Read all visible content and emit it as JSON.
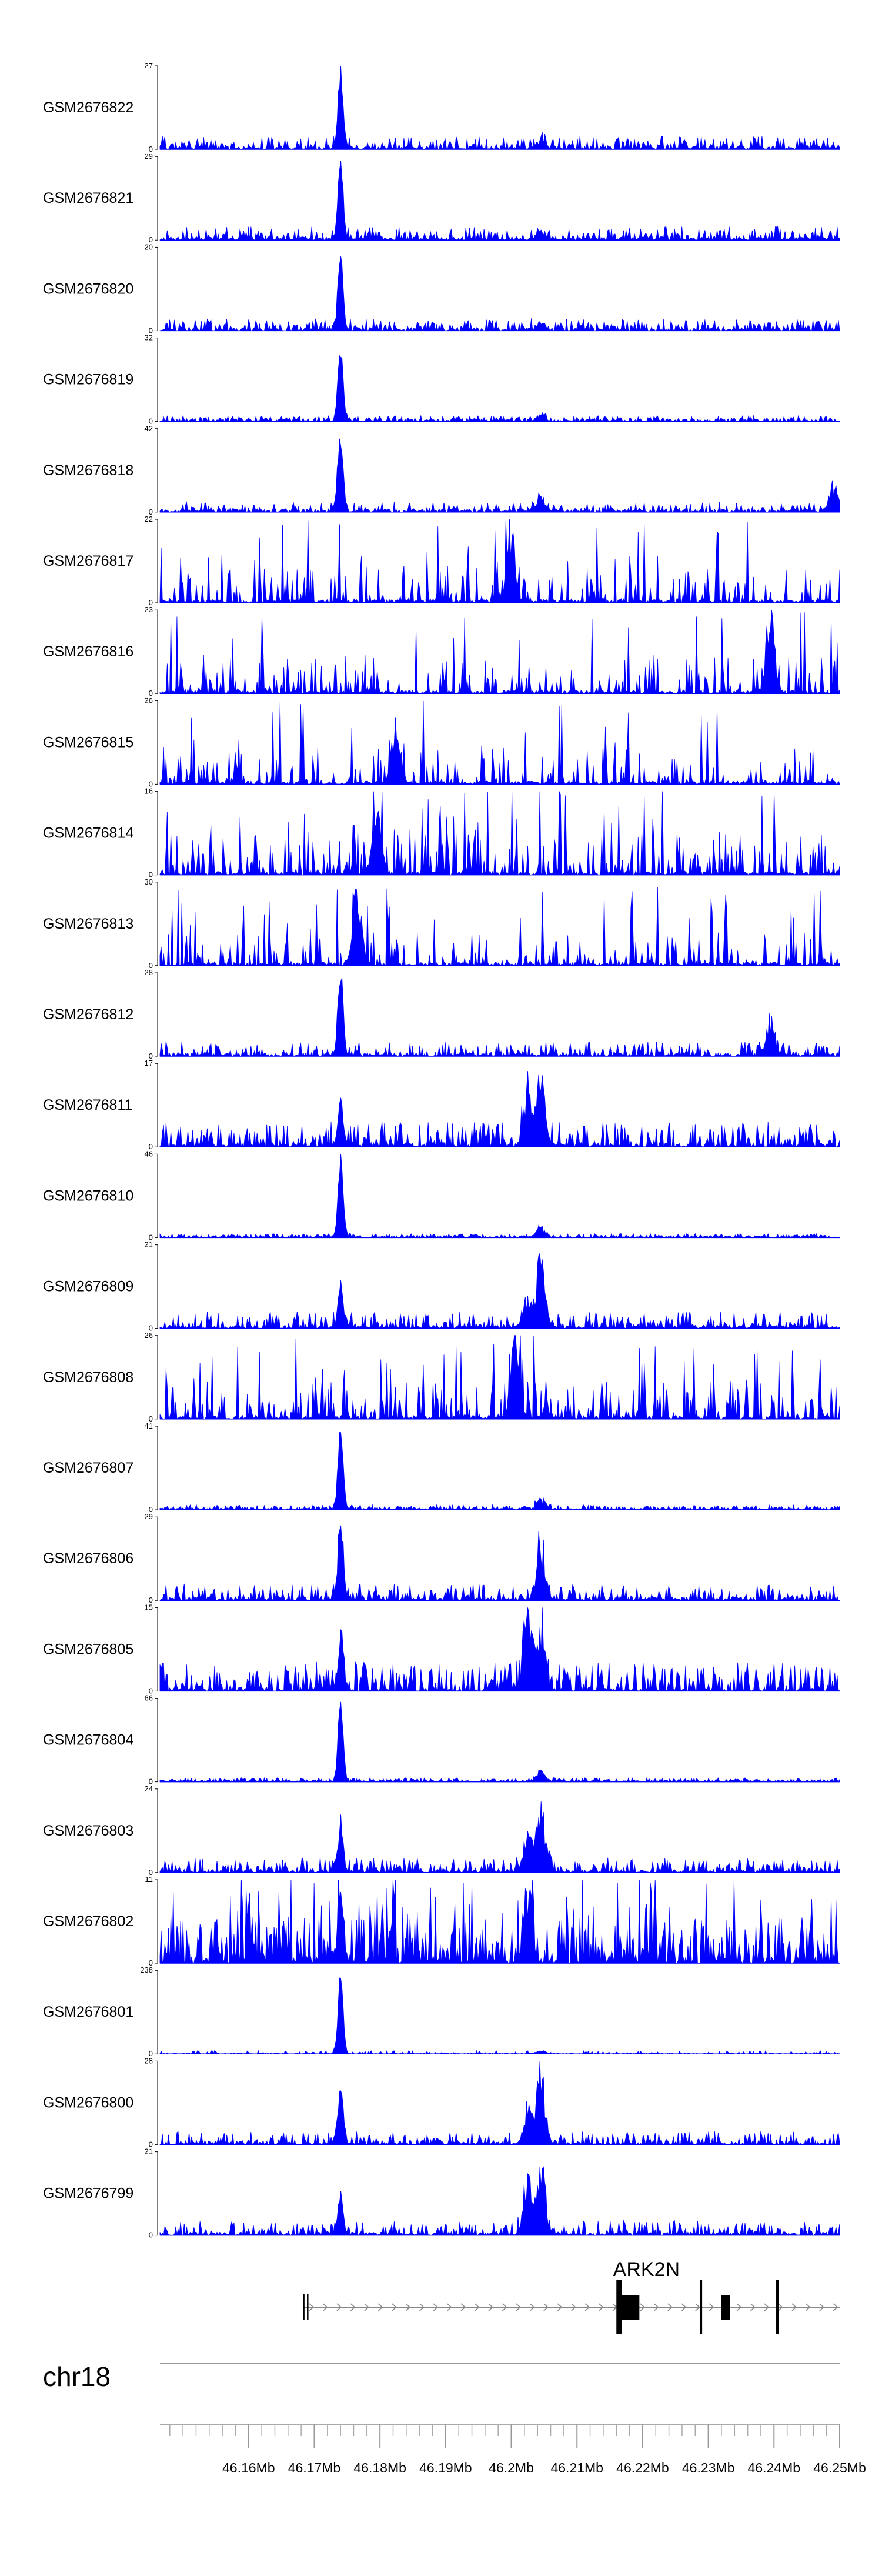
{
  "chart_data": {
    "type": "area",
    "chromosome": "chr18",
    "x_unit": "Mb",
    "x_range": [
      46.1465,
      46.25
    ],
    "x_ticks": [
      {
        "value": 46.16,
        "label": "46.16Mb"
      },
      {
        "value": 46.17,
        "label": "46.17Mb"
      },
      {
        "value": 46.18,
        "label": "46.18Mb"
      },
      {
        "value": 46.19,
        "label": "46.19Mb"
      },
      {
        "value": 46.2,
        "label": "46.2Mb"
      },
      {
        "value": 46.21,
        "label": "46.21Mb"
      },
      {
        "value": 46.22,
        "label": "46.22Mb"
      },
      {
        "value": 46.23,
        "label": "46.23Mb"
      },
      {
        "value": 46.24,
        "label": "46.24Mb"
      },
      {
        "value": 46.25,
        "label": "46.25Mb"
      }
    ],
    "minor_tick_step": 0.002,
    "series_color": "#0000FF",
    "tracks": [
      {
        "name": "GSM2676822",
        "ymax": 27,
        "ymax_label": "27",
        "ymin_label": "0",
        "pattern": "peak",
        "peak_frac": 1.0,
        "bg": 0.16,
        "sparse": 0.25,
        "regions": [
          [
            46.2045,
            0.1
          ]
        ]
      },
      {
        "name": "GSM2676821",
        "ymax": 29,
        "ymax_label": "29",
        "ymin_label": "0",
        "pattern": "peak",
        "peak_frac": 1.0,
        "bg": 0.16,
        "sparse": 0.25,
        "regions": [
          [
            46.2045,
            0.12
          ]
        ]
      },
      {
        "name": "GSM2676820",
        "ymax": 20,
        "ymax_label": "20",
        "ymin_label": "0",
        "pattern": "peak",
        "peak_frac": 0.9,
        "bg": 0.14,
        "sparse": 0.1,
        "regions": [
          [
            46.2045,
            0.12
          ]
        ]
      },
      {
        "name": "GSM2676819",
        "ymax": 32,
        "ymax_label": "32",
        "ymin_label": "0",
        "pattern": "peak",
        "peak_frac": 1.0,
        "bg": 0.07,
        "sparse": 0.15,
        "regions": [
          [
            46.2045,
            0.08
          ]
        ]
      },
      {
        "name": "GSM2676818",
        "ymax": 42,
        "ymax_label": "42",
        "ymin_label": "0",
        "pattern": "peak",
        "peak_frac": 1.0,
        "bg": 0.12,
        "sparse": 0.35,
        "regions": [
          [
            46.2045,
            0.15
          ],
          [
            46.249,
            0.4
          ]
        ]
      },
      {
        "name": "GSM2676817",
        "ymax": 22,
        "ymax_label": "22",
        "ymin_label": "0",
        "pattern": "noisy",
        "peak_frac": 0.0,
        "bg": 0.45,
        "sparse": 0.55,
        "regions": [
          [
            46.2,
            0.95
          ]
        ]
      },
      {
        "name": "GSM2676816",
        "ymax": 23,
        "ymax_label": "23",
        "ymin_label": "0",
        "pattern": "noisy",
        "peak_frac": 0.0,
        "bg": 0.45,
        "sparse": 0.55,
        "regions": [
          [
            46.2395,
            1.0
          ]
        ]
      },
      {
        "name": "GSM2676815",
        "ymax": 26,
        "ymax_label": "26",
        "ymin_label": "0",
        "pattern": "noisy",
        "peak_frac": 0.0,
        "bg": 0.45,
        "sparse": 0.6,
        "regions": [
          [
            46.1825,
            1.0
          ]
        ]
      },
      {
        "name": "GSM2676814",
        "ymax": 16,
        "ymax_label": "16",
        "ymin_label": "0",
        "pattern": "noisy",
        "peak_frac": 0.0,
        "bg": 0.55,
        "sparse": 0.45,
        "regions": [
          [
            46.1795,
            0.95
          ]
        ]
      },
      {
        "name": "GSM2676813",
        "ymax": 30,
        "ymax_label": "30",
        "ymin_label": "0",
        "pattern": "noisy",
        "peak_frac": 0.0,
        "bg": 0.4,
        "sparse": 0.55,
        "regions": [
          [
            46.1765,
            1.0
          ]
        ]
      },
      {
        "name": "GSM2676812",
        "ymax": 28,
        "ymax_label": "28",
        "ymin_label": "0",
        "pattern": "peak",
        "peak_frac": 1.0,
        "bg": 0.18,
        "sparse": 0.3,
        "regions": [
          [
            46.2395,
            0.4
          ]
        ]
      },
      {
        "name": "GSM2676811",
        "ymax": 17,
        "ymax_label": "17",
        "ymin_label": "0",
        "pattern": "mixed",
        "peak_frac": 0.6,
        "bg": 0.3,
        "sparse": 0.25,
        "regions": [
          [
            46.2045,
            1.0
          ],
          [
            46.2025,
            0.7
          ]
        ]
      },
      {
        "name": "GSM2676810",
        "ymax": 46,
        "ymax_label": "46",
        "ymin_label": "0",
        "pattern": "peak",
        "peak_frac": 1.0,
        "bg": 0.05,
        "sparse": 0.25,
        "regions": [
          [
            46.2045,
            0.15
          ]
        ]
      },
      {
        "name": "GSM2676809",
        "ymax": 21,
        "ymax_label": "21",
        "ymin_label": "0",
        "pattern": "mixed",
        "peak_frac": 0.55,
        "bg": 0.2,
        "sparse": 0.25,
        "regions": [
          [
            46.2045,
            1.0
          ],
          [
            46.2025,
            0.4
          ]
        ]
      },
      {
        "name": "GSM2676808",
        "ymax": 26,
        "ymax_label": "26",
        "ymin_label": "0",
        "pattern": "noisy",
        "peak_frac": 0.0,
        "bg": 0.45,
        "sparse": 0.45,
        "regions": [
          [
            46.2005,
            0.95
          ]
        ]
      },
      {
        "name": "GSM2676807",
        "ymax": 41,
        "ymax_label": "41",
        "ymin_label": "0",
        "pattern": "peak",
        "peak_frac": 1.0,
        "bg": 0.06,
        "sparse": 0.25,
        "regions": [
          [
            46.2045,
            0.15
          ]
        ]
      },
      {
        "name": "GSM2676806",
        "ymax": 29,
        "ymax_label": "29",
        "ymin_label": "0",
        "pattern": "peak",
        "peak_frac": 1.0,
        "bg": 0.2,
        "sparse": 0.25,
        "regions": [
          [
            46.2045,
            0.75
          ]
        ]
      },
      {
        "name": "GSM2676805",
        "ymax": 15,
        "ymax_label": "15",
        "ymin_label": "0",
        "pattern": "mixed",
        "peak_frac": 0.6,
        "bg": 0.35,
        "sparse": 0.1,
        "regions": [
          [
            46.2025,
            1.0
          ],
          [
            46.2045,
            0.9
          ]
        ]
      },
      {
        "name": "GSM2676804",
        "ymax": 66,
        "ymax_label": "66",
        "ymin_label": "0",
        "pattern": "peak",
        "peak_frac": 1.0,
        "bg": 0.05,
        "sparse": 0.2,
        "regions": [
          [
            46.2045,
            0.12
          ]
        ]
      },
      {
        "name": "GSM2676803",
        "ymax": 24,
        "ymax_label": "24",
        "ymin_label": "0",
        "pattern": "mixed",
        "peak_frac": 0.6,
        "bg": 0.18,
        "sparse": 0.25,
        "regions": [
          [
            46.2045,
            1.0
          ],
          [
            46.2025,
            0.5
          ]
        ]
      },
      {
        "name": "GSM2676802",
        "ymax": 11,
        "ymax_label": "11",
        "ymin_label": "0",
        "pattern": "noisy",
        "peak_frac": 0.9,
        "bg": 0.55,
        "sparse": 0.1,
        "regions": [
          [
            46.2025,
            0.95
          ]
        ]
      },
      {
        "name": "GSM2676801",
        "ymax": 238,
        "ymax_label": "238",
        "ymin_label": "0",
        "pattern": "peak",
        "peak_frac": 1.0,
        "bg": 0.01,
        "sparse": 0.3,
        "regions": [
          [
            46.2045,
            0.05
          ]
        ]
      },
      {
        "name": "GSM2676800",
        "ymax": 28,
        "ymax_label": "28",
        "ymin_label": "0",
        "pattern": "mixed",
        "peak_frac": 0.7,
        "bg": 0.16,
        "sparse": 0.25,
        "regions": [
          [
            46.2045,
            1.0
          ],
          [
            46.2025,
            0.5
          ]
        ]
      },
      {
        "name": "GSM2676799",
        "ymax": 21,
        "ymax_label": "21",
        "ymin_label": "0",
        "pattern": "mixed",
        "peak_frac": 0.55,
        "bg": 0.18,
        "sparse": 0.25,
        "regions": [
          [
            46.2045,
            1.0
          ],
          [
            46.2025,
            0.75
          ]
        ]
      }
    ],
    "peak_center": 46.174,
    "gene": {
      "name": "ARK2N",
      "strand": "+",
      "start": 46.1684,
      "end": 46.25,
      "tss": [
        46.1684,
        46.169
      ],
      "exons": [
        {
          "start": 46.216,
          "end": 46.2168,
          "tall": true
        },
        {
          "start": 46.2168,
          "end": 46.2195,
          "tall": false
        },
        {
          "start": 46.2287,
          "end": 46.229,
          "tall": true
        },
        {
          "start": 46.232,
          "end": 46.2333,
          "tall": false
        },
        {
          "start": 46.2403,
          "end": 46.2407,
          "tall": true
        }
      ]
    }
  }
}
